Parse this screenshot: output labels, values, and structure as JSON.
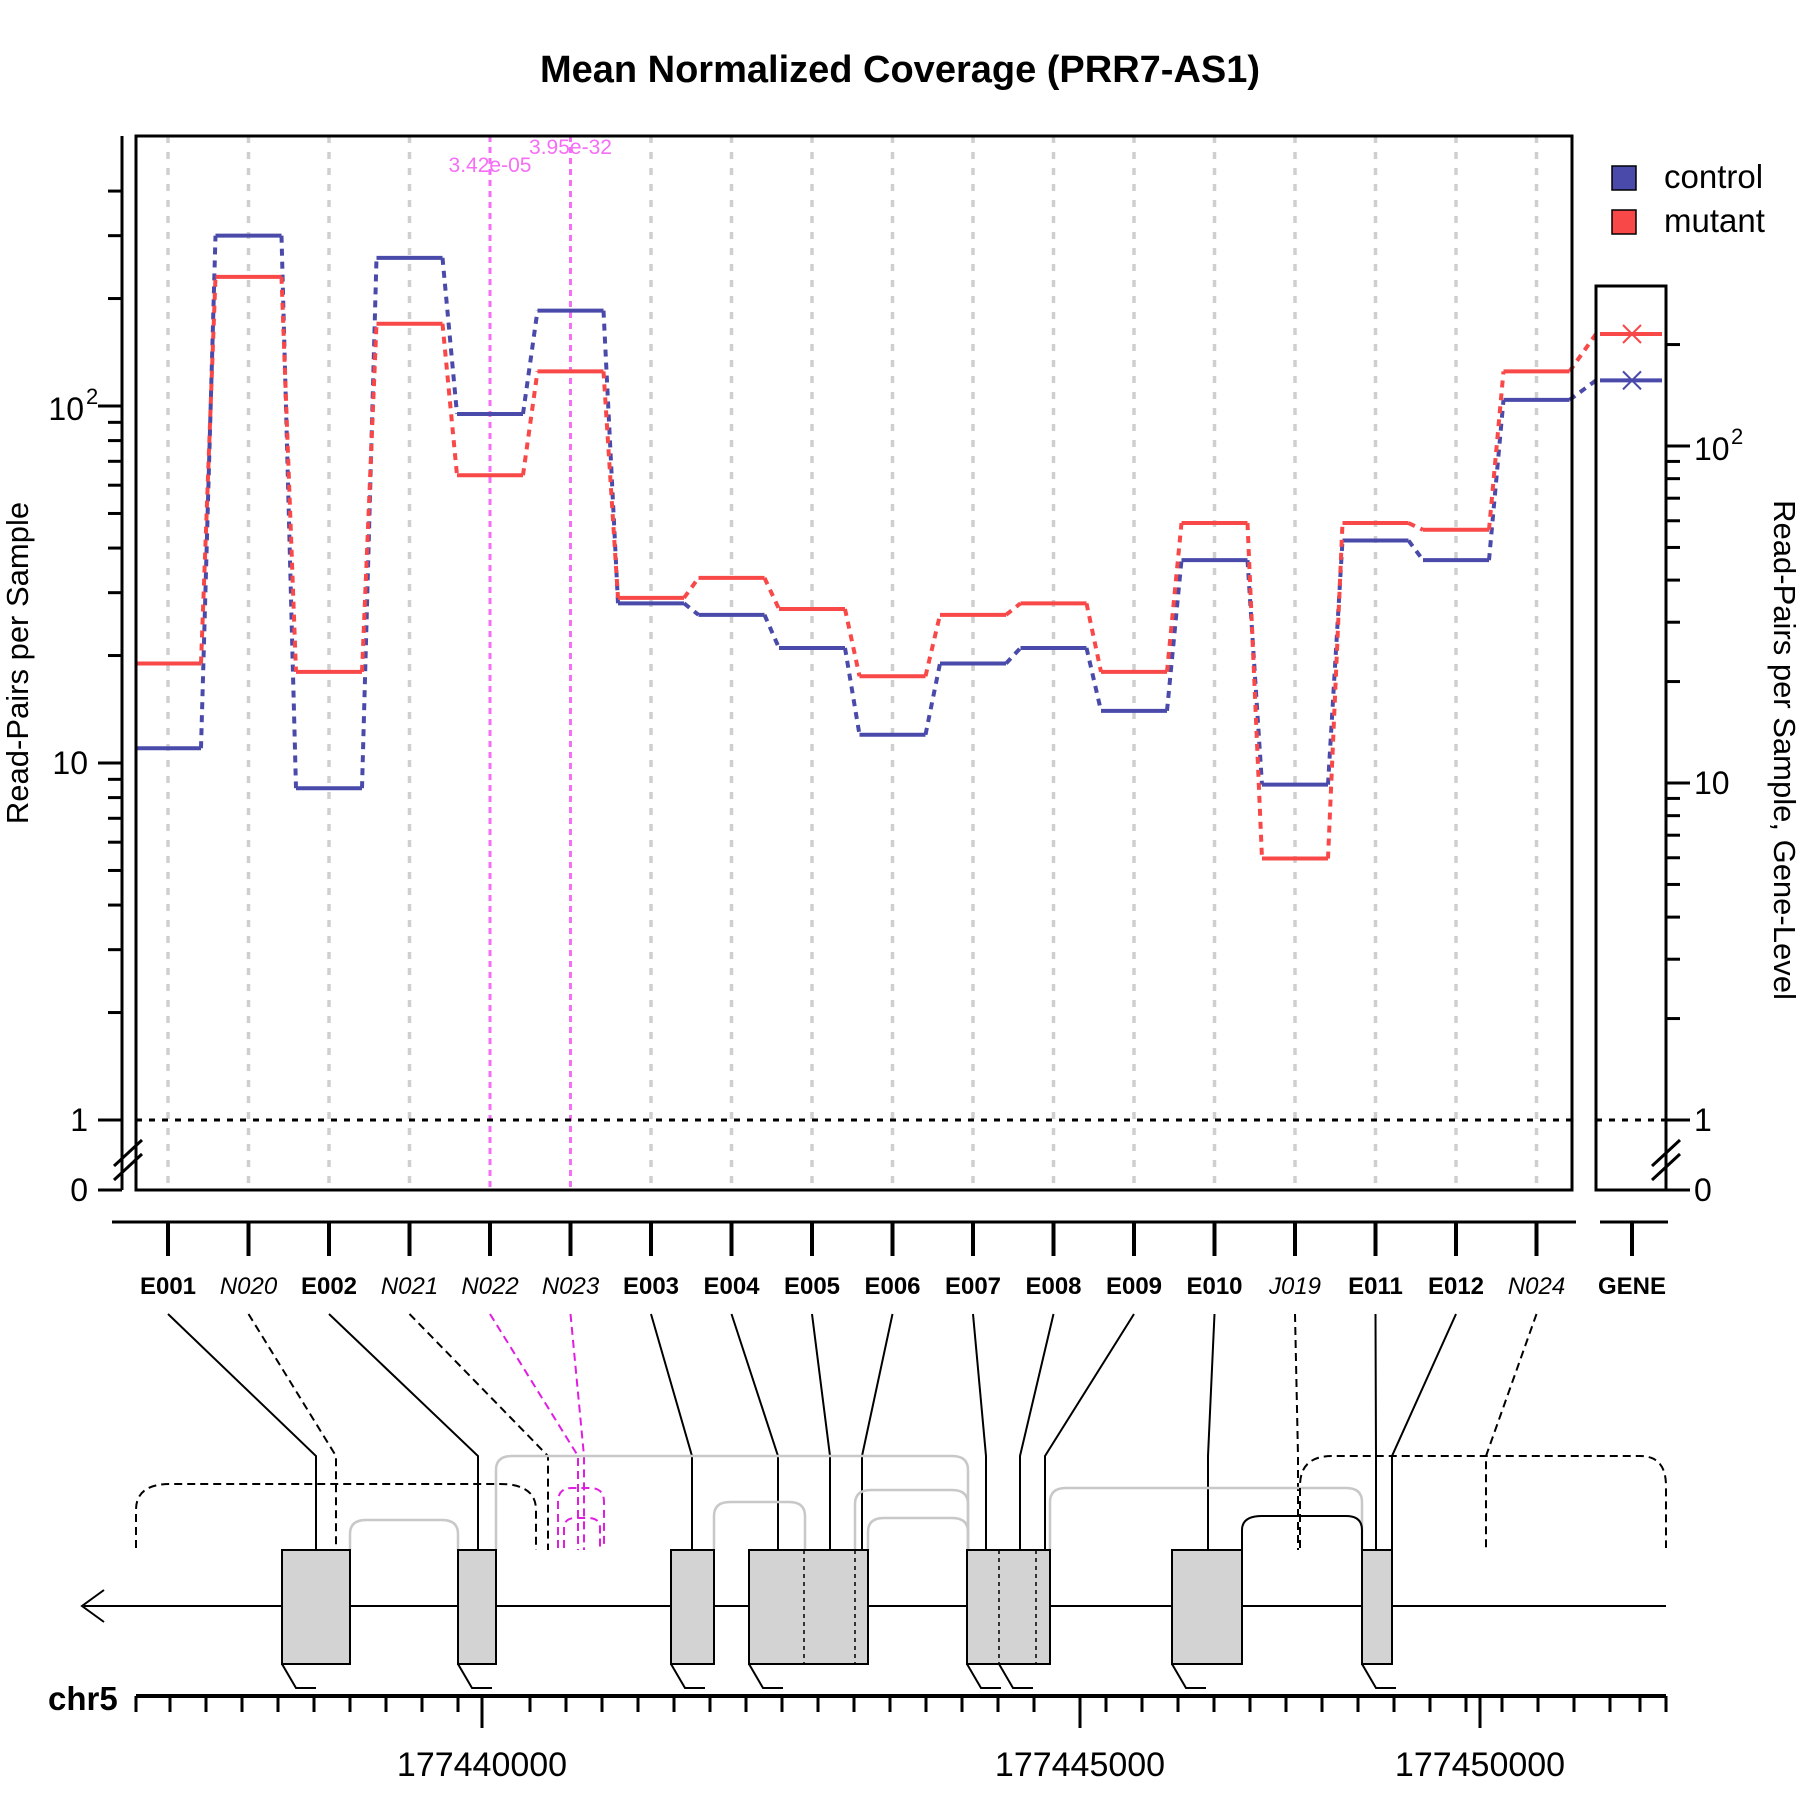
{
  "chart_data": {
    "type": "line",
    "title": "Mean Normalized Coverage (PRR7-AS1)",
    "ylabel": "Read-Pairs per Sample",
    "ylabel_right": "Read-Pairs per Sample, Gene-Level",
    "y_scale": "log",
    "y_ticks": [
      {
        "value": 0,
        "label": "0"
      },
      {
        "value": 1,
        "label": "1"
      },
      {
        "value": 10,
        "label": "10"
      },
      {
        "value": 100,
        "label": "10^2"
      }
    ],
    "colors": {
      "control": "#4a4aaa",
      "mutant": "#f94848",
      "significant": "#f56ef5"
    },
    "categories": [
      {
        "id": "E001",
        "kind": "exon"
      },
      {
        "id": "N020",
        "kind": "novel"
      },
      {
        "id": "E002",
        "kind": "exon"
      },
      {
        "id": "N021",
        "kind": "novel"
      },
      {
        "id": "N022",
        "kind": "novel",
        "significant": true,
        "pvalue": "3.42e-05"
      },
      {
        "id": "N023",
        "kind": "novel",
        "significant": true,
        "pvalue": "3.95e-32"
      },
      {
        "id": "E003",
        "kind": "exon"
      },
      {
        "id": "E004",
        "kind": "exon"
      },
      {
        "id": "E005",
        "kind": "exon"
      },
      {
        "id": "E006",
        "kind": "exon"
      },
      {
        "id": "E007",
        "kind": "exon"
      },
      {
        "id": "E008",
        "kind": "exon"
      },
      {
        "id": "E009",
        "kind": "exon"
      },
      {
        "id": "E010",
        "kind": "exon"
      },
      {
        "id": "J019",
        "kind": "novel"
      },
      {
        "id": "E011",
        "kind": "exon"
      },
      {
        "id": "E012",
        "kind": "exon"
      },
      {
        "id": "N024",
        "kind": "novel"
      }
    ],
    "series": [
      {
        "name": "control",
        "values": [
          11,
          300,
          8.5,
          260,
          95,
          185,
          28,
          26,
          21,
          12,
          19,
          21,
          14,
          37,
          8.7,
          42,
          37,
          104
        ]
      },
      {
        "name": "mutant",
        "values": [
          19,
          230,
          18,
          170,
          64,
          125,
          29,
          33,
          27,
          17.5,
          26,
          28,
          18,
          47,
          5.4,
          47,
          45,
          125
        ]
      }
    ],
    "gene_level": {
      "label": "GENE",
      "values": [
        {
          "name": "control",
          "value": 152
        },
        {
          "name": "mutant",
          "value": 205
        }
      ]
    },
    "legend": {
      "position": "top-right",
      "entries": [
        {
          "name": "control",
          "label": "control"
        },
        {
          "name": "mutant",
          "label": "mutant"
        }
      ]
    },
    "gene_model": {
      "chromosome": "chr5",
      "tick_labels": [
        "177440000",
        "177445000",
        "177450000"
      ],
      "strand": "minus"
    }
  }
}
